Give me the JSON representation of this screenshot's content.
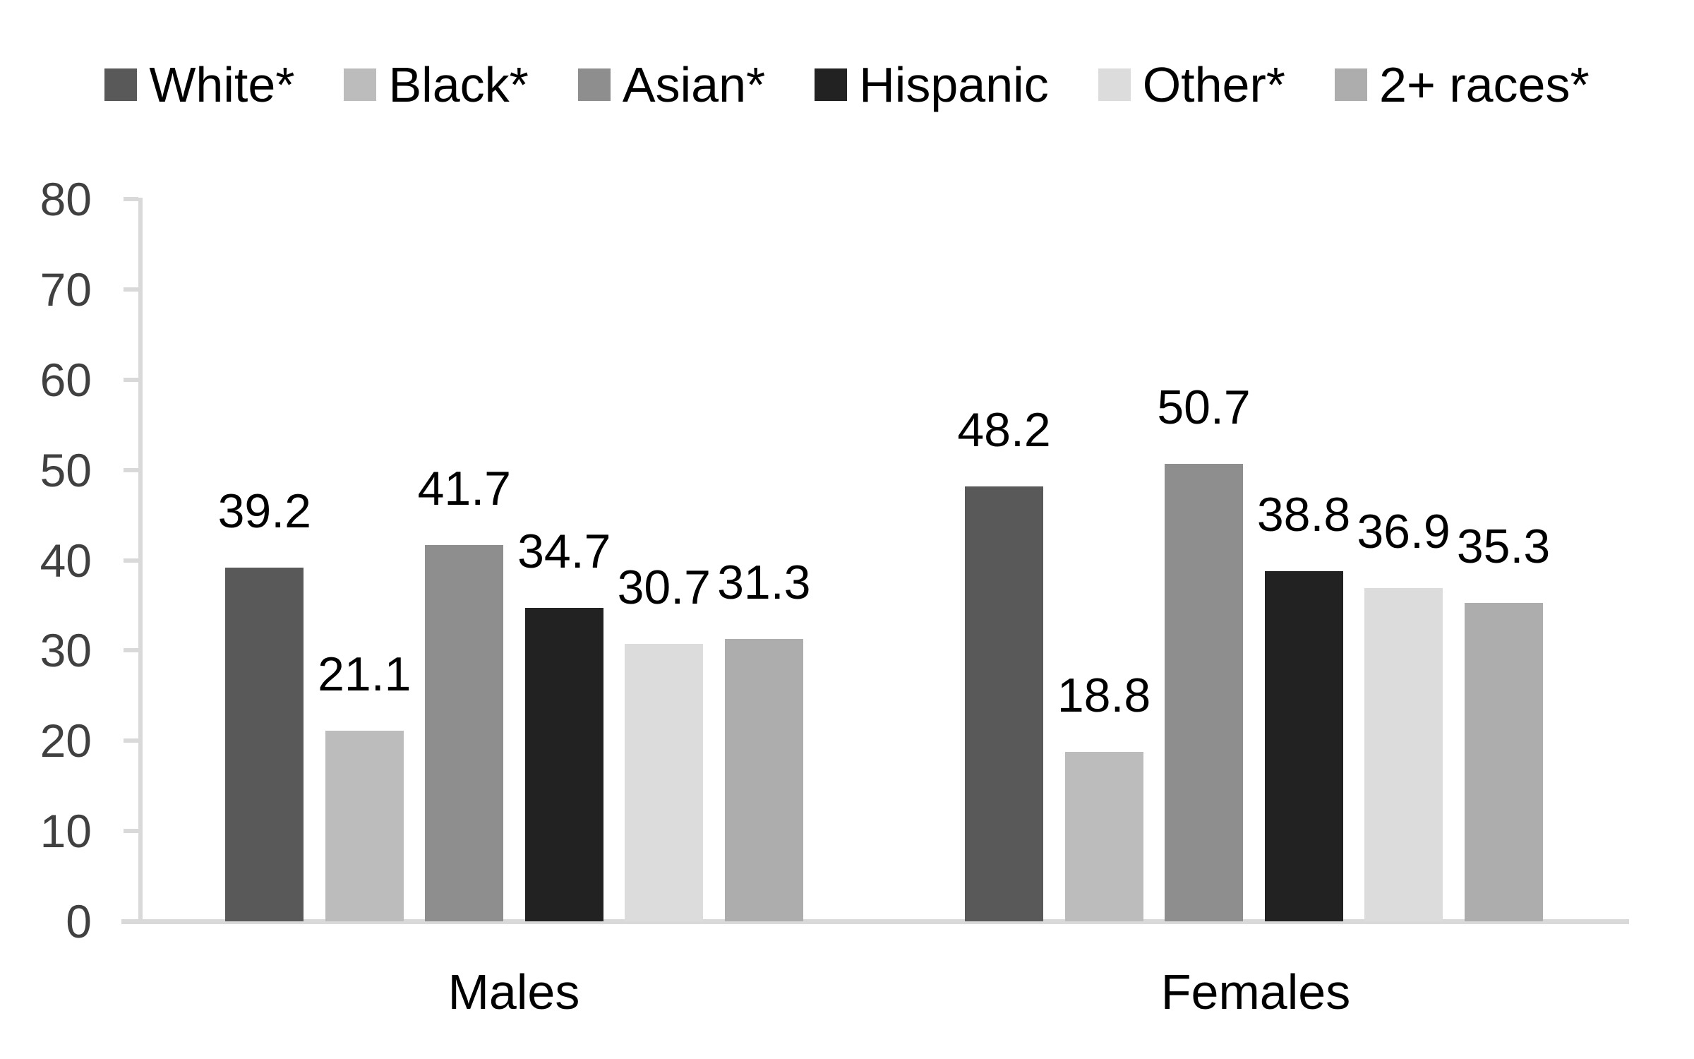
{
  "chart_data": {
    "type": "bar",
    "title": "",
    "xlabel": "",
    "ylabel": "",
    "categories": [
      "Males",
      "Females"
    ],
    "series": [
      {
        "name": "White*",
        "color": "#595959",
        "values": [
          39.2,
          48.2
        ],
        "value_labels": [
          "39.2",
          "48.2"
        ]
      },
      {
        "name": "Black*",
        "color": "#bcbcbc",
        "values": [
          21.1,
          18.8
        ],
        "value_labels": [
          "21.1",
          "18.8"
        ]
      },
      {
        "name": "Asian*",
        "color": "#8e8e8e",
        "values": [
          41.7,
          50.7
        ],
        "value_labels": [
          "41.7",
          "50.7"
        ]
      },
      {
        "name": "Hispanic",
        "color": "#222222",
        "values": [
          34.7,
          38.8
        ],
        "value_labels": [
          "34.7",
          "38.8"
        ]
      },
      {
        "name": "Other*",
        "color": "#dcdcdc",
        "values": [
          30.7,
          36.9
        ],
        "value_labels": [
          "30.7",
          "36.9"
        ]
      },
      {
        "name": "2+ races*",
        "color": "#adadad",
        "values": [
          31.3,
          35.3
        ],
        "value_labels": [
          "31.3",
          "35.3"
        ]
      }
    ],
    "ylim": [
      0,
      80
    ],
    "y_ticks": [
      0,
      10,
      20,
      30,
      40,
      50,
      60,
      70,
      80
    ],
    "y_tick_labels": [
      "0",
      "10",
      "20",
      "30",
      "40",
      "50",
      "60",
      "70",
      "80"
    ],
    "grid": false,
    "legend_position": "top",
    "data_labels": true,
    "axis_color": "#d9d9d9",
    "tick_label_color": "#404040",
    "text_color": "#000000"
  }
}
